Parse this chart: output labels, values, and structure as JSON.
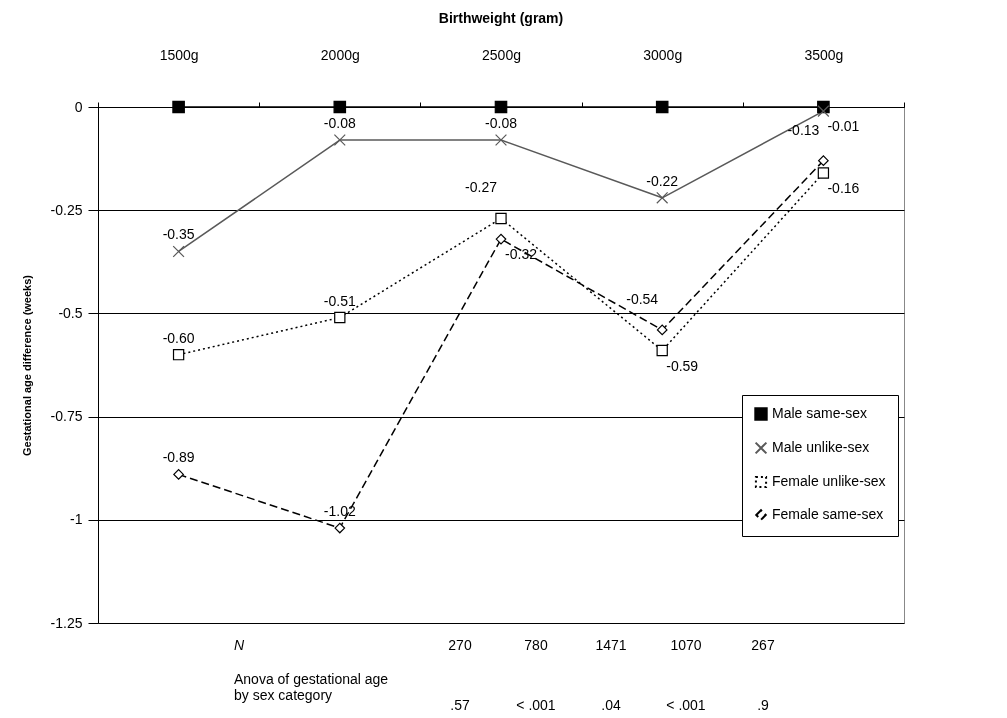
{
  "chart_data": {
    "type": "line",
    "title": "Birthweight (gram)",
    "ylabel": "Gestational age difference (weeks)",
    "categories": [
      "1500g",
      "2000g",
      "2500g",
      "3000g",
      "3500g"
    ],
    "ylim": [
      -1.25,
      0
    ],
    "yticks": [
      0,
      -0.25,
      -0.5,
      -0.75,
      -1,
      -1.25
    ],
    "grid": "y",
    "legend": "bottom right",
    "series": [
      {
        "name": "Male same-sex",
        "color": "#000000",
        "marker": "square",
        "line_style": "solid",
        "values": [
          0,
          0,
          0,
          0,
          0
        ]
      },
      {
        "name": "Male unlike-sex",
        "color": "#595959",
        "marker": "cross",
        "line_style": "solid",
        "values": [
          -0.35,
          -0.08,
          -0.08,
          -0.22,
          -0.01
        ],
        "value_labels": [
          "-0.35",
          "-0.08",
          "-0.08",
          "-0.22",
          "-0.01"
        ]
      },
      {
        "name": "Female unlike-sex",
        "color": "#000000",
        "marker": "square",
        "line_style": "dotted",
        "values": [
          -0.6,
          -0.51,
          -0.27,
          -0.59,
          -0.16
        ],
        "value_labels": [
          "-0.60",
          "-0.51",
          "-0.27",
          "-0.59",
          "-0.16"
        ]
      },
      {
        "name": "Female same-sex",
        "color": "#000000",
        "marker": "diamond",
        "line_style": "dashed",
        "values": [
          -0.89,
          -1.02,
          -0.32,
          -0.54,
          -0.13
        ],
        "value_labels": [
          "-0.89",
          "-1.02",
          "-0.32",
          "-0.54",
          "-0.13"
        ]
      }
    ],
    "annotations": [
      "N",
      "270",
      "780",
      "1471",
      "1070",
      "267",
      "Anova of gestational age by sex category",
      ".57",
      "< .001",
      ".04",
      "< .001",
      ".9"
    ]
  }
}
